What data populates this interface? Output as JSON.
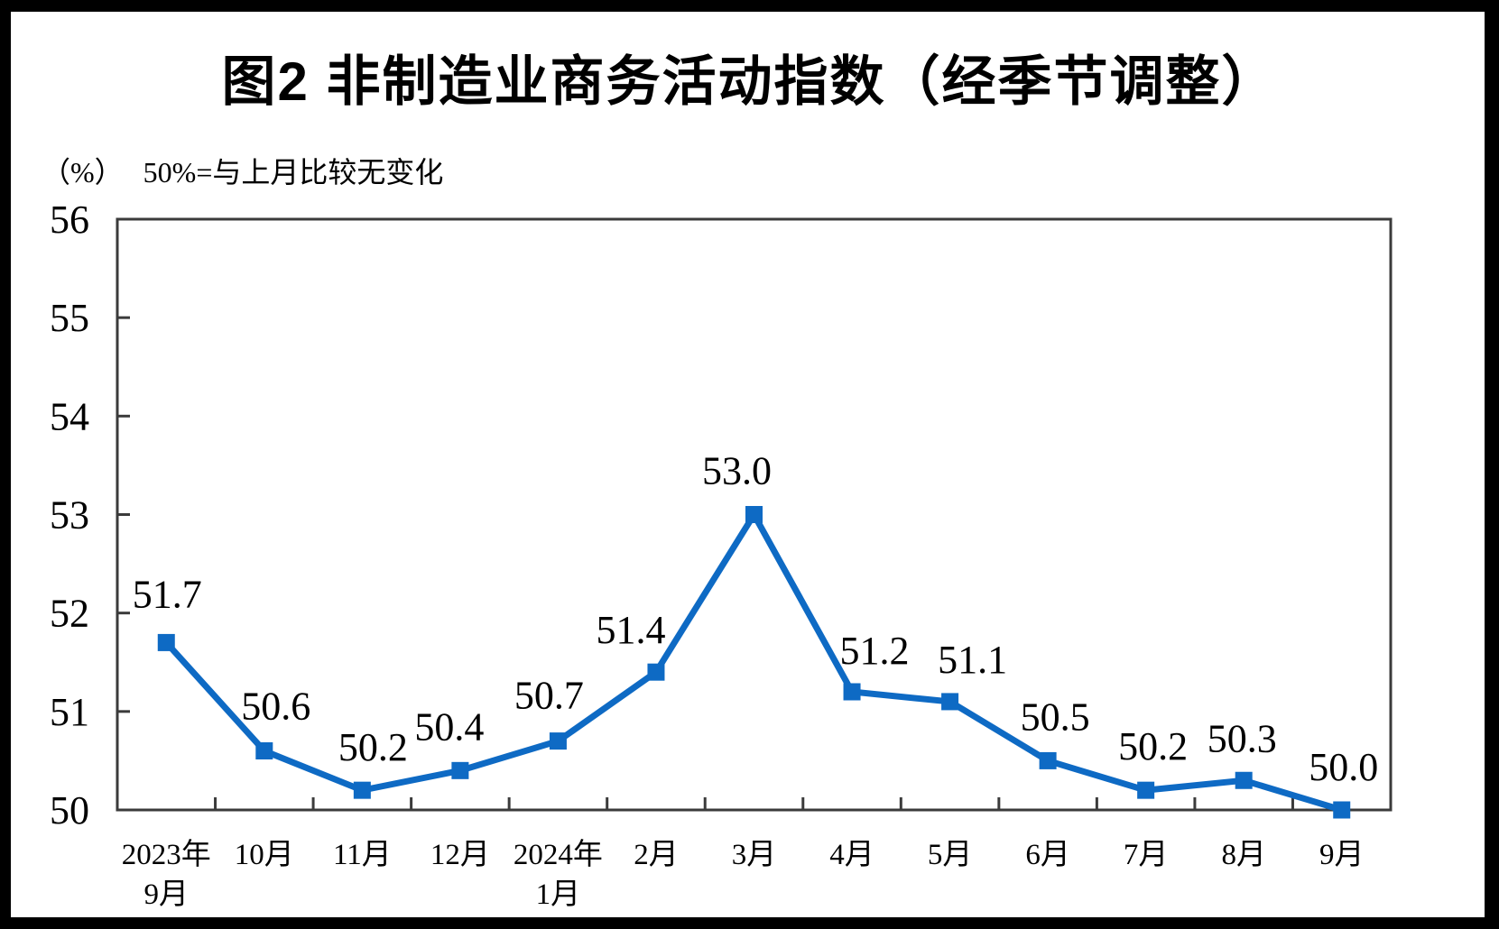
{
  "title": "图2 非制造业商务活动指数（经季节调整）",
  "subtitle": {
    "unit_label": "（%）",
    "note": "50%=与上月比较无变化"
  },
  "colors": {
    "line": "#0E6AC4",
    "axis": "#3B3B3B",
    "text": "#000000",
    "background": "#FFFFFF",
    "frame": "#000000"
  },
  "chart_data": {
    "type": "line",
    "series_name": "非制造业商务活动指数（经季节调整）",
    "categories": [
      "2023年\n9月",
      "10月",
      "11月",
      "12月",
      "2024年\n1月",
      "2月",
      "3月",
      "4月",
      "5月",
      "6月",
      "7月",
      "8月",
      "9月"
    ],
    "values": [
      51.7,
      50.6,
      50.2,
      50.4,
      50.7,
      51.4,
      53.0,
      51.2,
      51.1,
      50.5,
      50.2,
      50.3,
      50.0
    ],
    "data_labels": [
      "51.7",
      "50.6",
      "50.2",
      "50.4",
      "50.7",
      "51.4",
      "53.0",
      "51.2",
      "51.1",
      "50.5",
      "50.2",
      "50.3",
      "50.0"
    ],
    "xlabel": "",
    "ylabel": "（%）",
    "ylim": [
      50,
      56
    ],
    "ytick_step": 1,
    "yticks": [
      "50",
      "51",
      "52",
      "53",
      "54",
      "55",
      "56"
    ],
    "grid": false,
    "legend_position": "none",
    "marker": "square"
  }
}
